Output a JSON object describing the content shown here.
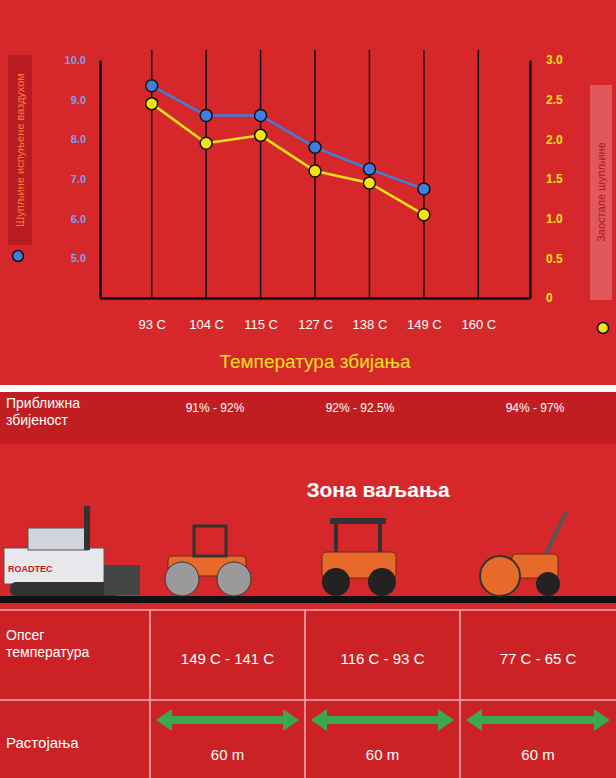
{
  "chart_data": {
    "type": "line",
    "xlabel": "Температура збијања",
    "categories": [
      "93 C",
      "104 C",
      "115 C",
      "127 C",
      "138 C",
      "149 C",
      "160 C"
    ],
    "series": [
      {
        "name": "Шупљине испуњене ваздухом",
        "color": "#3f7ee0",
        "marker": "circle",
        "axis": "y",
        "values": [
          9.35,
          8.6,
          8.6,
          7.8,
          7.25,
          6.75,
          null
        ]
      },
      {
        "name": "Заостале шупљине",
        "color": "#f2e21a",
        "marker": "circle",
        "axis": "y2",
        "values": [
          2.45,
          1.95,
          2.05,
          1.6,
          1.45,
          1.05,
          null
        ]
      }
    ],
    "ylim": [
      4,
      10
    ],
    "yticks": [
      {
        "value": 5,
        "label": "5.0"
      },
      {
        "value": 6,
        "label": "6.0"
      },
      {
        "value": 7,
        "label": "7.0"
      },
      {
        "value": 8,
        "label": "8.0"
      },
      {
        "value": 9,
        "label": "9.0"
      },
      {
        "value": 10,
        "label": "10.0"
      }
    ],
    "y2lim": [
      0,
      3
    ],
    "y2ticks": [
      0,
      0.5,
      {
        "value": 1,
        "label": "1.0"
      },
      1.5,
      {
        "value": 2,
        "label": "2.0"
      },
      2.5,
      {
        "value": 3,
        "label": "3.0"
      }
    ],
    "grid": true
  },
  "diagram": {
    "title": "Зона ваљања",
    "brand": "ROADTEC",
    "row_labels": {
      "compaction": "Приближна збијеност",
      "temperature": "Опсег температура",
      "distance": "Растојања"
    },
    "zones": [
      {
        "compaction": "91% - 92%",
        "temperature": "149 C - 141 C",
        "distance": "60 m"
      },
      {
        "compaction": "92% - 92.5%",
        "temperature": "116 C - 93 C",
        "distance": "60 m"
      },
      {
        "compaction": "94% - 97%",
        "temperature": "77 C - 65 C",
        "distance": "60 m"
      }
    ]
  }
}
